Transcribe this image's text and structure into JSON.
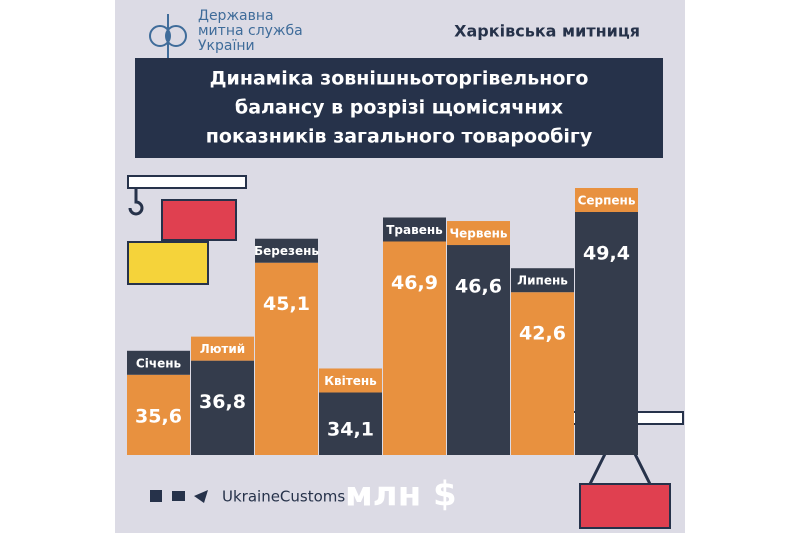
{
  "chart_data": {
    "type": "bar",
    "agency": [
      "Державна",
      "митна служба",
      "України"
    ],
    "office": "Харківська митниця",
    "title": [
      "Динаміка зовнішньоторгівельного",
      "балансу в розрізі щомісячних",
      "показників загального товарообігу"
    ],
    "categories": [
      "Січень",
      "Лютий",
      "Березень",
      "Квітень",
      "Травень",
      "Червень",
      "Липень",
      "Серпень"
    ],
    "values": [
      35.6,
      36.8,
      45.1,
      34.1,
      46.9,
      46.6,
      42.6,
      49.4
    ],
    "value_labels": [
      "35,6",
      "36,8",
      "45,1",
      "34,1",
      "46,9",
      "46,6",
      "42,6",
      "49,4"
    ],
    "colors": [
      "#e8913f",
      "#343c4c",
      "#e8913f",
      "#343c4c",
      "#e8913f",
      "#343c4c",
      "#e8913f",
      "#343c4c"
    ],
    "label_colors": [
      "#343c4c",
      "#e8913f",
      "#343c4c",
      "#e8913f",
      "#343c4c",
      "#e8913f",
      "#343c4c",
      "#e8913f"
    ],
    "ylim": [
      28.8,
      49.4
    ],
    "unit": "млн $",
    "handle": "UkraineCustoms"
  }
}
